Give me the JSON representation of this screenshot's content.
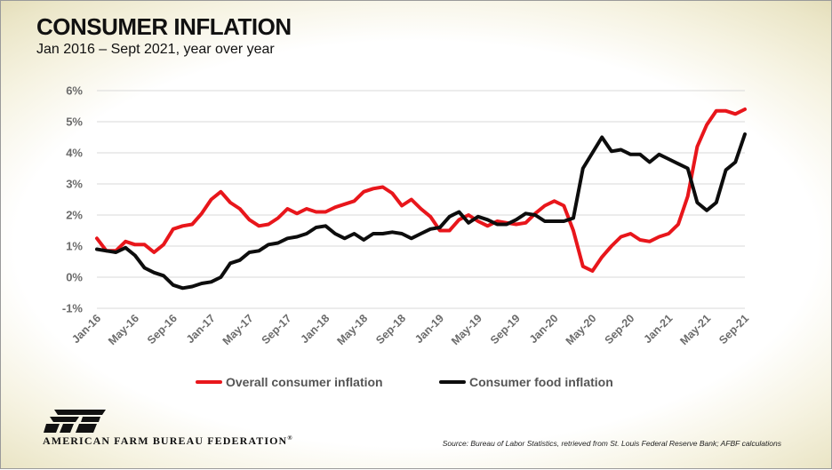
{
  "header": {
    "title": "CONSUMER INFLATION",
    "subtitle": "Jan 2016 – Sept 2021, year over year"
  },
  "footer": {
    "brand": "AMERICAN FARM BUREAU FEDERATION",
    "registered_mark": "®",
    "logo_text": "FB",
    "source": "Source: Bureau of Labor Statistics, retrieved from St. Louis Federal Reserve Bank; AFBF calculations"
  },
  "colors": {
    "overall": "#e8161b",
    "food": "#0d0d0d",
    "grid": "#d9d9d9",
    "tick_text": "#6b6b6b"
  },
  "chart_data": {
    "type": "line",
    "title": "CONSUMER INFLATION",
    "subtitle": "Jan 2016 – Sept 2021, year over year",
    "xlabel": "",
    "ylabel": "",
    "ylim": [
      -1,
      6
    ],
    "yticks": [
      -1,
      0,
      1,
      2,
      3,
      4,
      5,
      6
    ],
    "ytick_labels": [
      "-1%",
      "0%",
      "1%",
      "2%",
      "3%",
      "4%",
      "5%",
      "6%"
    ],
    "grid": true,
    "legend_position": "bottom",
    "x": [
      "Jan-16",
      "Feb-16",
      "Mar-16",
      "Apr-16",
      "May-16",
      "Jun-16",
      "Jul-16",
      "Aug-16",
      "Sep-16",
      "Oct-16",
      "Nov-16",
      "Dec-16",
      "Jan-17",
      "Feb-17",
      "Mar-17",
      "Apr-17",
      "May-17",
      "Jun-17",
      "Jul-17",
      "Aug-17",
      "Sep-17",
      "Oct-17",
      "Nov-17",
      "Dec-17",
      "Jan-18",
      "Feb-18",
      "Mar-18",
      "Apr-18",
      "May-18",
      "Jun-18",
      "Jul-18",
      "Aug-18",
      "Sep-18",
      "Oct-18",
      "Nov-18",
      "Dec-18",
      "Jan-19",
      "Feb-19",
      "Mar-19",
      "Apr-19",
      "May-19",
      "Jun-19",
      "Jul-19",
      "Aug-19",
      "Sep-19",
      "Oct-19",
      "Nov-19",
      "Dec-19",
      "Jan-20",
      "Feb-20",
      "Mar-20",
      "Apr-20",
      "May-20",
      "Jun-20",
      "Jul-20",
      "Aug-20",
      "Sep-20",
      "Oct-20",
      "Nov-20",
      "Dec-20",
      "Jan-21",
      "Feb-21",
      "Mar-21",
      "Apr-21",
      "May-21",
      "Jun-21",
      "Jul-21",
      "Aug-21",
      "Sep-21"
    ],
    "x_tick_labels": [
      "Jan-16",
      "May-16",
      "Sep-16",
      "Jan-17",
      "May-17",
      "Sep-17",
      "Jan-18",
      "May-18",
      "Sep-18",
      "Jan-19",
      "May-19",
      "Sep-19",
      "Jan-20",
      "May-20",
      "Sep-20",
      "Jan-21",
      "May-21",
      "Sep-21"
    ],
    "series": [
      {
        "name": "Overall consumer inflation",
        "color": "#e8161b",
        "values": [
          1.25,
          0.85,
          0.85,
          1.15,
          1.05,
          1.05,
          0.8,
          1.05,
          1.55,
          1.65,
          1.7,
          2.05,
          2.5,
          2.75,
          2.4,
          2.2,
          1.85,
          1.65,
          1.7,
          1.9,
          2.2,
          2.05,
          2.2,
          2.1,
          2.1,
          2.25,
          2.35,
          2.45,
          2.75,
          2.85,
          2.9,
          2.7,
          2.3,
          2.5,
          2.2,
          1.95,
          1.5,
          1.5,
          1.85,
          2.0,
          1.8,
          1.65,
          1.8,
          1.75,
          1.7,
          1.75,
          2.05,
          2.3,
          2.45,
          2.3,
          1.5,
          0.35,
          0.2,
          0.65,
          1.0,
          1.3,
          1.4,
          1.2,
          1.15,
          1.3,
          1.4,
          1.7,
          2.6,
          4.2,
          4.9,
          5.35,
          5.35,
          5.25,
          5.4
        ]
      },
      {
        "name": "Consumer food inflation",
        "color": "#0d0d0d",
        "values": [
          0.9,
          0.85,
          0.8,
          0.95,
          0.7,
          0.3,
          0.15,
          0.05,
          -0.25,
          -0.35,
          -0.3,
          -0.2,
          -0.15,
          0.0,
          0.45,
          0.55,
          0.8,
          0.85,
          1.05,
          1.1,
          1.25,
          1.3,
          1.4,
          1.6,
          1.65,
          1.4,
          1.25,
          1.4,
          1.2,
          1.4,
          1.4,
          1.45,
          1.4,
          1.25,
          1.4,
          1.55,
          1.6,
          1.95,
          2.1,
          1.75,
          1.95,
          1.85,
          1.7,
          1.7,
          1.85,
          2.05,
          2.0,
          1.8,
          1.8,
          1.8,
          1.9,
          3.5,
          4.0,
          4.5,
          4.05,
          4.1,
          3.95,
          3.95,
          3.7,
          3.95,
          3.8,
          3.65,
          3.5,
          2.4,
          2.15,
          2.4,
          3.45,
          3.7,
          4.6
        ]
      }
    ]
  }
}
